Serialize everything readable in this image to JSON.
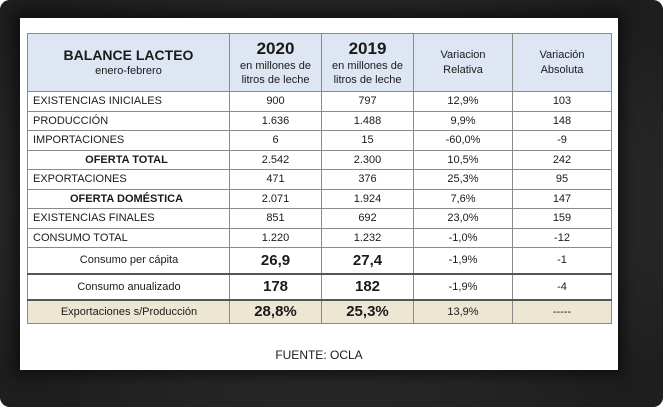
{
  "header": {
    "title": "BALANCE LACTEO",
    "subtitle": "enero-febrero",
    "year1": "2020",
    "year1_unit_1": "en millones de",
    "year1_unit_2": "litros de leche",
    "year2": "2019",
    "year2_unit_1": "en millones de",
    "year2_unit_2": "litros de leche",
    "var_rel_1": "Variacion",
    "var_rel_2": "Relativa",
    "var_abs_1": "Variación",
    "var_abs_2": "Absoluta"
  },
  "rows": [
    {
      "label": "EXISTENCIAS  INICIALES",
      "v2020": "900",
      "v2019": "797",
      "rel": "12,9%",
      "abs": "103"
    },
    {
      "label": "PRODUCCIÓN",
      "v2020": "1.636",
      "v2019": "1.488",
      "rel": "9,9%",
      "abs": "148"
    },
    {
      "label": "IMPORTACIONES",
      "v2020": "6",
      "v2019": "15",
      "rel": "-60,0%",
      "abs": "-9"
    },
    {
      "label": "OFERTA TOTAL",
      "v2020": "2.542",
      "v2019": "2.300",
      "rel": "10,5%",
      "abs": "242"
    },
    {
      "label": "EXPORTACIONES",
      "v2020": "471",
      "v2019": "376",
      "rel": "25,3%",
      "abs": "95"
    },
    {
      "label": "OFERTA DOMÉSTICA",
      "v2020": "2.071",
      "v2019": "1.924",
      "rel": "7,6%",
      "abs": "147"
    },
    {
      "label": "EXISTENCIAS FINALES",
      "v2020": "851",
      "v2019": "692",
      "rel": "23,0%",
      "abs": "159"
    },
    {
      "label": "CONSUMO TOTAL",
      "v2020": "1.220",
      "v2019": "1.232",
      "rel": "-1,0%",
      "abs": "-12"
    },
    {
      "label": "Consumo per cápita",
      "v2020": "26,9",
      "v2019": "27,4",
      "rel": "-1,9%",
      "abs": "-1"
    },
    {
      "label": "Consumo anualizado",
      "v2020": "178",
      "v2019": "182",
      "rel": "-1,9%",
      "abs": "-4"
    },
    {
      "label": "Exportaciones s/Producción",
      "v2020": "28,8%",
      "v2019": "25,3%",
      "rel": "13,9%",
      "abs": "-----"
    }
  ],
  "source": "FUENTE: OCLA",
  "colors": {
    "header_bg": "#dde6f2",
    "last_row_bg": "#ece6d2",
    "frame": "#2a2a2a"
  }
}
